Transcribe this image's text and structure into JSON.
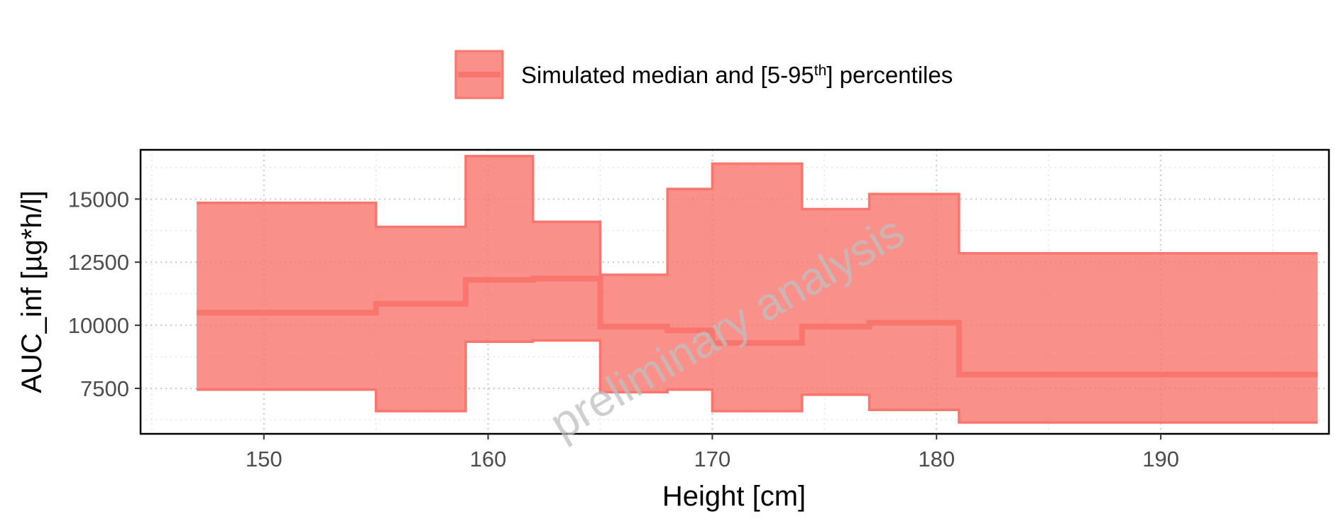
{
  "chart_data": {
    "type": "area",
    "xlabel": "Height [cm]",
    "ylabel": "AUC_inf [µg*h/l]",
    "xlim": [
      144.5,
      197.5
    ],
    "ylim": [
      5700,
      16950
    ],
    "xticks": [
      150,
      160,
      170,
      180,
      190
    ],
    "xtick_labels": [
      "150",
      "160",
      "170",
      "180",
      "190"
    ],
    "yticks": [
      7500,
      10000,
      12500,
      15000
    ],
    "ytick_labels": [
      "7500",
      "10000",
      "12500",
      "15000"
    ],
    "grid": true,
    "legend": {
      "position": "top",
      "label_main": "Simulated median and [5-95",
      "label_sup": "th",
      "label_end": "] percentiles"
    },
    "watermark": "preliminary analysis",
    "colors": {
      "fill": "#f8766d",
      "line": "#f8766d"
    },
    "series": {
      "edges": [
        147,
        155,
        159,
        162,
        165,
        168,
        170,
        174,
        177,
        181,
        197
      ],
      "median": [
        10500,
        10850,
        11800,
        11850,
        9950,
        9800,
        9300,
        9950,
        10100,
        8050
      ],
      "upper": [
        14850,
        13900,
        16700,
        14100,
        12000,
        15400,
        16400,
        14600,
        15200,
        12850
      ],
      "lower": [
        7450,
        6600,
        9350,
        9400,
        7350,
        7450,
        6600,
        7250,
        6650,
        6150
      ]
    }
  }
}
